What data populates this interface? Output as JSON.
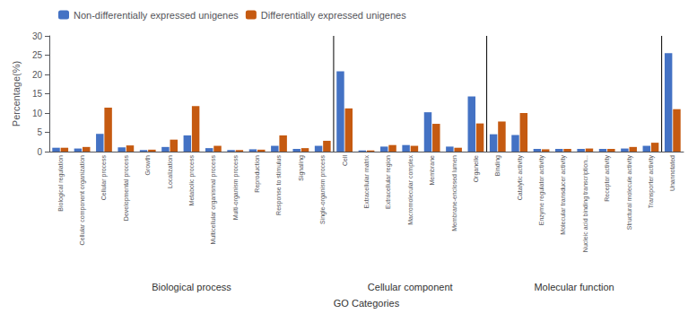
{
  "chart_data": {
    "type": "bar",
    "categories": [
      "Biological regulation",
      "Cellular component organization",
      "Cellular process",
      "Developmental process",
      "Growth",
      "Localization",
      "Metabolic process",
      "Multicellular organismal process",
      "Multi-organism process",
      "Reproduction",
      "Response to stimulus",
      "Signaling",
      "Single-organism process",
      "Cell",
      "Extracellular matrix",
      "Extracellular region",
      "Macromolecular complex",
      "Membrane",
      "Membrane-enclosed lumen",
      "Organelle",
      "Binding",
      "Catalytic activity",
      "Enzyme regulator activity",
      "Molecular transducer activity",
      "Nucleic acid binding transcription...",
      "Receptor activity",
      "Structural molecule activity",
      "Transporter activity",
      "Unannotated"
    ],
    "series": [
      {
        "name": "Non-differentially expressed unigenes",
        "color": "#4472C4",
        "values": [
          1.0,
          0.8,
          4.6,
          1.1,
          0.4,
          1.2,
          4.2,
          0.9,
          0.4,
          0.6,
          1.5,
          0.7,
          1.5,
          20.8,
          0.3,
          1.3,
          1.7,
          10.2,
          1.3,
          14.3,
          4.5,
          4.3,
          0.7,
          0.7,
          0.7,
          0.7,
          0.8,
          1.5,
          25.5
        ]
      },
      {
        "name": "Differentially expressed unigenes",
        "color": "#C55A11",
        "values": [
          1.0,
          1.2,
          11.4,
          1.6,
          0.5,
          3.1,
          11.8,
          1.5,
          0.4,
          0.5,
          4.2,
          0.9,
          2.8,
          11.2,
          0.3,
          1.7,
          1.5,
          7.2,
          1.0,
          7.3,
          7.8,
          10.0,
          0.6,
          0.7,
          0.8,
          0.7,
          1.2,
          2.3,
          11.0
        ]
      }
    ],
    "xlabel": "GO Categories",
    "ylabel": "Percentage(%)",
    "annotations": [
      "Biological process",
      "Cellular component",
      "Molecular function"
    ],
    "ylim": [
      0,
      30
    ],
    "yticks": [
      0,
      5,
      10,
      15,
      20,
      25,
      30
    ],
    "grid": false,
    "legend": "upper left"
  }
}
